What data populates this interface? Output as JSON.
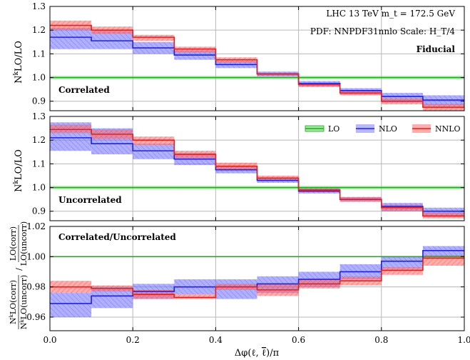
{
  "chart_data": [
    {
      "type": "line",
      "panel": "top",
      "xlim": [
        0,
        1
      ],
      "ylim": [
        0.86,
        1.3
      ],
      "yticks": [
        0.9,
        1.0,
        1.1,
        1.2,
        1.3
      ],
      "ytick_labels": [
        "0.9",
        "1.0",
        "1.1",
        "1.2",
        "1.3"
      ],
      "ylabel": "N^kLO/LO",
      "annotations": [
        "LHC 13 TeV m_t = 172.5 GeV",
        "PDF: NNPDF31nnlo Scale: H_T/4",
        "Fiducial",
        "Correlated"
      ],
      "bin_edges": [
        0.0,
        0.1,
        0.2,
        0.3,
        0.4,
        0.5,
        0.6,
        0.7,
        0.8,
        0.9,
        1.0
      ],
      "series": [
        {
          "name": "LO",
          "color": "#22aa22",
          "values": [
            1.0,
            1.0,
            1.0,
            1.0,
            1.0,
            1.0,
            1.0,
            1.0,
            1.0,
            1.0
          ],
          "band_lo": [
            0.993,
            0.993,
            0.993,
            0.993,
            0.993,
            0.993,
            0.993,
            0.993,
            0.993,
            0.993
          ],
          "band_hi": [
            1.007,
            1.007,
            1.007,
            1.007,
            1.007,
            1.007,
            1.007,
            1.007,
            1.007,
            1.007
          ]
        },
        {
          "name": "NLO",
          "color": "#2222dd",
          "values": [
            1.17,
            1.155,
            1.125,
            1.095,
            1.055,
            1.015,
            0.975,
            0.945,
            0.92,
            0.905
          ],
          "band_lo": [
            1.12,
            1.12,
            1.1,
            1.075,
            1.04,
            1.005,
            0.962,
            0.928,
            0.895,
            0.88
          ],
          "band_hi": [
            1.21,
            1.195,
            1.15,
            1.115,
            1.07,
            1.025,
            0.985,
            0.955,
            0.935,
            0.925
          ]
        },
        {
          "name": "NNLO",
          "color": "#dd2222",
          "values": [
            1.22,
            1.2,
            1.17,
            1.12,
            1.075,
            1.015,
            0.97,
            0.935,
            0.9,
            0.875
          ],
          "band_lo": [
            1.2,
            1.185,
            1.155,
            1.105,
            1.062,
            1.007,
            0.96,
            0.925,
            0.887,
            0.86
          ],
          "band_hi": [
            1.24,
            1.215,
            1.18,
            1.13,
            1.085,
            1.02,
            0.978,
            0.945,
            0.912,
            0.89
          ]
        }
      ]
    },
    {
      "type": "line",
      "panel": "middle",
      "xlim": [
        0,
        1
      ],
      "ylim": [
        0.86,
        1.3
      ],
      "yticks": [
        0.9,
        1.0,
        1.1,
        1.2,
        1.3
      ],
      "ytick_labels": [
        "0.9",
        "1.0",
        "1.1",
        "1.2",
        "1.3"
      ],
      "ylabel": "N^kLO/LO",
      "annotations": [
        "Uncorrelated"
      ],
      "legend": {
        "entries": [
          "LO",
          "NLO",
          "NNLO"
        ],
        "placement": "top-right"
      },
      "bin_edges": [
        0.0,
        0.1,
        0.2,
        0.3,
        0.4,
        0.5,
        0.6,
        0.7,
        0.8,
        0.9,
        1.0
      ],
      "series": [
        {
          "name": "LO",
          "color": "#22aa22",
          "values": [
            1.0,
            1.0,
            1.0,
            1.0,
            1.0,
            1.0,
            1.0,
            1.0,
            1.0,
            1.0
          ],
          "band_lo": [
            0.993,
            0.993,
            0.993,
            0.993,
            0.993,
            0.993,
            0.993,
            0.993,
            0.993,
            0.993
          ],
          "band_hi": [
            1.007,
            1.007,
            1.007,
            1.007,
            1.007,
            1.007,
            1.007,
            1.007,
            1.007,
            1.007
          ]
        },
        {
          "name": "NLO",
          "color": "#2222dd",
          "values": [
            1.21,
            1.185,
            1.155,
            1.12,
            1.075,
            1.03,
            0.985,
            0.95,
            0.92,
            0.9
          ],
          "band_lo": [
            1.155,
            1.14,
            1.12,
            1.095,
            1.06,
            1.02,
            0.975,
            0.94,
            0.9,
            0.88
          ],
          "band_hi": [
            1.275,
            1.25,
            1.185,
            1.145,
            1.09,
            1.04,
            0.995,
            0.96,
            0.935,
            0.915
          ]
        },
        {
          "name": "NNLO",
          "color": "#dd2222",
          "values": [
            1.245,
            1.225,
            1.2,
            1.14,
            1.09,
            1.04,
            0.99,
            0.95,
            0.915,
            0.88
          ],
          "band_lo": [
            1.23,
            1.205,
            1.18,
            1.125,
            1.075,
            1.03,
            0.98,
            0.94,
            0.9,
            0.87
          ],
          "band_hi": [
            1.265,
            1.245,
            1.215,
            1.155,
            1.105,
            1.05,
            0.998,
            0.96,
            0.928,
            0.895
          ]
        }
      ]
    },
    {
      "type": "line",
      "panel": "bottom",
      "xlim": [
        0,
        1
      ],
      "ylim": [
        0.951,
        1.02
      ],
      "yticks": [
        0.96,
        0.98,
        1.0,
        1.02
      ],
      "ytick_labels": [
        "0.96",
        "0.98",
        "1.00",
        "1.02"
      ],
      "xticks": [
        0,
        0.2,
        0.4,
        0.6,
        0.8,
        1.0
      ],
      "xtick_labels": [
        "0.0",
        "0.2",
        "0.4",
        "0.6",
        "0.8",
        "1.0"
      ],
      "xlabel": "Δφ(ℓ, ℓ̄)/π",
      "ylabel": "N^kLO(corr)/N^kLO(uncorr) / LO(corr)/LO(uncorr)",
      "annotations": [
        "Correlated/Uncorrelated"
      ],
      "bin_edges": [
        0.0,
        0.1,
        0.2,
        0.3,
        0.4,
        0.5,
        0.6,
        0.7,
        0.8,
        0.9,
        1.0
      ],
      "series": [
        {
          "name": "LO",
          "color": "#22aa22",
          "values": [
            1.0,
            1.0,
            1.0,
            1.0,
            1.0,
            1.0,
            1.0,
            1.0,
            1.0,
            1.0
          ],
          "band_lo": [
            1.0,
            1.0,
            1.0,
            1.0,
            1.0,
            1.0,
            1.0,
            1.0,
            1.0,
            1.0
          ],
          "band_hi": [
            1.0,
            1.0,
            1.0,
            1.0,
            1.0,
            1.0,
            1.0,
            1.0,
            1.0,
            1.0
          ]
        },
        {
          "name": "NLO",
          "color": "#2222dd",
          "values": [
            0.969,
            0.974,
            0.977,
            0.98,
            0.98,
            0.982,
            0.985,
            0.99,
            0.997,
            1.004
          ],
          "band_lo": [
            0.96,
            0.966,
            0.972,
            0.975,
            0.972,
            0.976,
            0.98,
            0.985,
            0.992,
            1.0
          ],
          "band_hi": [
            0.976,
            0.98,
            0.982,
            0.985,
            0.985,
            0.987,
            0.99,
            0.995,
            1.0,
            1.007
          ]
        },
        {
          "name": "NNLO",
          "color": "#dd2222",
          "values": [
            0.98,
            0.979,
            0.975,
            0.973,
            0.98,
            0.978,
            0.982,
            0.984,
            0.991,
            0.999
          ],
          "band_lo": [
            0.976,
            0.977,
            0.972,
            0.972,
            0.978,
            0.974,
            0.979,
            0.981,
            0.988,
            0.994
          ],
          "band_hi": [
            0.984,
            0.981,
            0.978,
            0.975,
            0.982,
            0.982,
            0.985,
            0.987,
            0.993,
            1.001
          ]
        }
      ]
    }
  ]
}
